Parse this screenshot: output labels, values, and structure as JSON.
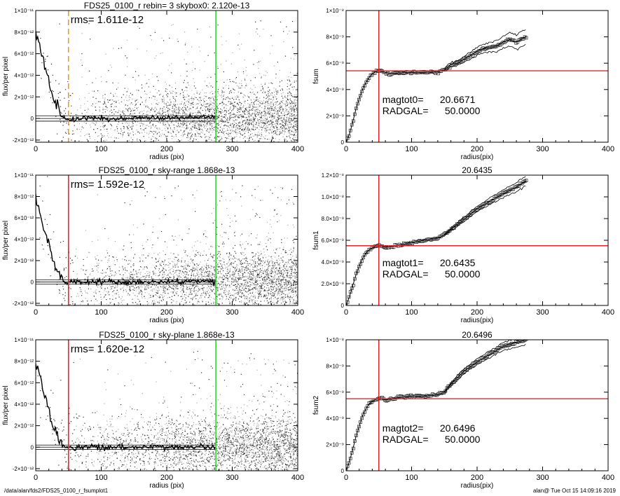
{
  "footer": {
    "path": "/data/alan/fds2/FDS25_0100_r_fsumplot1",
    "stamp": "alan@  Tue Oct 15 14:09:16 2019"
  },
  "colors": {
    "scatter": "#a8a8a8",
    "scatter_dark": "#303030",
    "profile": "#000000",
    "red": "#e8232a",
    "green": "#33d633",
    "orange": "#e89a2c"
  },
  "chart_data": [
    {
      "type": "scatter",
      "title": "FDS25_0100_r rebin= 3   skybox0:  2.120e-13",
      "annotation": "rms= 1.611e-12",
      "xlabel": "radius (pix)",
      "ylabel": "flux/per pixel",
      "xlim": [
        0,
        400
      ],
      "ylim": [
        -2.2e-12,
        1e-11
      ],
      "xticks": [
        0,
        100,
        200,
        300,
        400
      ],
      "xticklabels": [
        "0",
        "100",
        "200",
        "300",
        "400"
      ],
      "yticks": [
        -2e-12,
        0,
        2e-12,
        4e-12,
        6e-12,
        8e-12,
        1e-11
      ],
      "yticklabels": [
        "-2×10⁻¹²",
        "0",
        "2×10⁻¹²",
        "4×10⁻¹²",
        "6×10⁻¹²",
        "8×10⁻¹²",
        "1×10⁻¹¹"
      ],
      "vlines": [
        {
          "x": 50,
          "color": "orange",
          "style": "dashed"
        },
        {
          "x": 275,
          "color": "green",
          "style": "solid"
        }
      ],
      "hlines": [
        -2.5e-13,
        0,
        2.5e-13
      ],
      "profile": {
        "x": [
          0,
          5,
          10,
          15,
          20,
          25,
          30,
          35,
          40,
          45,
          50,
          60,
          80,
          100,
          150,
          200,
          250,
          275
        ],
        "y": [
          7.8e-12,
          7e-12,
          5.6e-12,
          4.6e-12,
          3.4e-12,
          2.3e-12,
          1.4e-12,
          8e-13,
          3e-13,
          1e-13,
          0.0,
          -5e-14,
          0.0,
          2e-14,
          0.0,
          5e-14,
          1e-13,
          1e-13
        ]
      }
    },
    {
      "type": "line",
      "title": "",
      "annotation_lines": [
        "magtot0=      20.6671",
        "RADGAL=      50.0000"
      ],
      "xlabel": "radius(pix)",
      "ylabel": "fsum",
      "xlim": [
        0,
        400
      ],
      "ylim": [
        0,
        1e-08
      ],
      "xticks": [
        0,
        100,
        200,
        300,
        400
      ],
      "xticklabels": [
        "0",
        "100",
        "200",
        "300",
        "400"
      ],
      "yticks": [
        0,
        2e-09,
        4e-09,
        6e-09,
        8e-09,
        1e-08
      ],
      "yticklabels": [
        "0",
        "2×10⁻⁹",
        "4×10⁻⁹",
        "6×10⁻⁹",
        "8×10⁻⁹",
        "1×10⁻⁸"
      ],
      "vline": 50,
      "hline": 5.42e-09,
      "band_start": 150,
      "band_width": [
        1e-10,
        6e-10
      ],
      "series": [
        {
          "x": [
            0,
            5,
            10,
            15,
            20,
            25,
            30,
            35,
            40,
            45,
            50,
            60,
            70,
            80,
            100,
            120,
            140,
            150,
            160,
            170,
            180,
            190,
            200,
            210,
            220,
            230,
            240,
            250,
            260,
            270,
            275
          ],
          "y": [
            0,
            6e-10,
            1.5e-09,
            2.5e-09,
            3.3e-09,
            4e-09,
            4.5e-09,
            4.9e-09,
            5.2e-09,
            5.35e-09,
            5.45e-09,
            5.3e-09,
            5.2e-09,
            5.25e-09,
            5.3e-09,
            5.3e-09,
            5.35e-09,
            5.5e-09,
            5.9e-09,
            6e-09,
            6.3e-09,
            6.6e-09,
            6.9e-09,
            7.1e-09,
            7.2e-09,
            7.3e-09,
            7.6e-09,
            7.8e-09,
            7.6e-09,
            7.9e-09,
            8e-09
          ]
        }
      ]
    },
    {
      "type": "scatter",
      "title": "FDS25_0100_r sky-range  1.868e-13",
      "annotation": "rms= 1.592e-12",
      "xlabel": "radius (pix)",
      "ylabel": "flux/per pixel",
      "xlim": [
        0,
        400
      ],
      "ylim": [
        -2.2e-12,
        1e-11
      ],
      "xticks": [
        0,
        100,
        200,
        300,
        400
      ],
      "xticklabels": [
        "0",
        "100",
        "200",
        "300",
        "400"
      ],
      "yticks": [
        -2e-12,
        0,
        2e-12,
        4e-12,
        6e-12,
        8e-12,
        1e-11
      ],
      "yticklabels": [
        "-2×10⁻¹²",
        "0",
        "2×10⁻¹²",
        "4×10⁻¹²",
        "6×10⁻¹²",
        "8×10⁻¹²",
        "1×10⁻¹¹"
      ],
      "vlines": [
        {
          "x": 50,
          "color": "red",
          "style": "solid"
        },
        {
          "x": 275,
          "color": "green",
          "style": "solid"
        }
      ],
      "hlines": [
        -2e-13,
        0,
        2e-13
      ],
      "profile": {
        "x": [
          0,
          5,
          10,
          15,
          20,
          25,
          30,
          35,
          40,
          45,
          50,
          60,
          80,
          100,
          150,
          200,
          250,
          275
        ],
        "y": [
          7.6e-12,
          6.8e-12,
          5.5e-12,
          4.4e-12,
          3.3e-12,
          2.2e-12,
          1.3e-12,
          7e-13,
          2.5e-13,
          5e-14,
          0.0,
          -5e-14,
          0.0,
          0.0,
          0.0,
          2e-14,
          5e-14,
          5e-14
        ]
      }
    },
    {
      "type": "line",
      "title": "20.6435",
      "annotation_lines": [
        "magtot1=      20.6435",
        "RADGAL=      50.0000"
      ],
      "xlabel": "radius(pix)",
      "ylabel": "fsum1",
      "xlim": [
        0,
        400
      ],
      "ylim": [
        0,
        1.2e-08
      ],
      "xticks": [
        0,
        100,
        200,
        300,
        400
      ],
      "xticklabels": [
        "0",
        "100",
        "200",
        "300",
        "400"
      ],
      "yticks": [
        0,
        2e-09,
        4e-09,
        6e-09,
        8e-09,
        1e-08,
        1.2e-08
      ],
      "yticklabels": [
        "0",
        "2.0×10⁻⁹",
        "4.0×10⁻⁹",
        "6.0×10⁻⁹",
        "8.0×10⁻⁹",
        "1.0×10⁻⁸",
        "1.2×10⁻⁸"
      ],
      "vline": 50,
      "hline": 5.5e-09,
      "band_start": 150,
      "band_width": [
        1e-10,
        4.5e-10
      ],
      "series": [
        {
          "x": [
            0,
            5,
            10,
            15,
            20,
            25,
            30,
            35,
            40,
            45,
            50,
            60,
            80,
            100,
            120,
            140,
            150,
            160,
            180,
            200,
            220,
            240,
            260,
            275
          ],
          "y": [
            0,
            8e-10,
            1.8e-09,
            2.8e-09,
            3.6e-09,
            4.3e-09,
            4.8e-09,
            5.1e-09,
            5.3e-09,
            5.45e-09,
            5.55e-09,
            5.35e-09,
            5.5e-09,
            5.8e-09,
            6e-09,
            6.2e-09,
            6.5e-09,
            7e-09,
            7.9e-09,
            8.9e-09,
            9.6e-09,
            1.03e-08,
            1.09e-08,
            1.15e-08
          ]
        }
      ]
    },
    {
      "type": "scatter",
      "title": "FDS25_0100_r sky-plane  1.868e-13",
      "annotation": "rms= 1.620e-12",
      "xlabel": "radius (pix)",
      "ylabel": "flux/per pixel",
      "xlim": [
        0,
        400
      ],
      "ylim": [
        -2.2e-12,
        1e-11
      ],
      "xticks": [
        0,
        100,
        200,
        300,
        400
      ],
      "xticklabels": [
        "0",
        "100",
        "200",
        "300",
        "400"
      ],
      "yticks": [
        -2e-12,
        0,
        2e-12,
        4e-12,
        6e-12,
        8e-12,
        1e-11
      ],
      "yticklabels": [
        "-2×10⁻¹²",
        "0",
        "2×10⁻¹²",
        "4×10⁻¹²",
        "6×10⁻¹²",
        "8×10⁻¹²",
        "1×10⁻¹¹"
      ],
      "vlines": [
        {
          "x": 50,
          "color": "red",
          "style": "solid"
        },
        {
          "x": 275,
          "color": "green",
          "style": "solid"
        }
      ],
      "hlines": [
        -2e-13,
        0,
        2e-13
      ],
      "profile": {
        "x": [
          0,
          5,
          10,
          15,
          20,
          25,
          30,
          35,
          40,
          45,
          50,
          60,
          80,
          100,
          150,
          200,
          250,
          275
        ],
        "y": [
          7.8e-12,
          7e-12,
          5.6e-12,
          4.5e-12,
          3.4e-12,
          2.3e-12,
          1.4e-12,
          7e-13,
          3e-13,
          1e-13,
          0.0,
          -5e-14,
          0.0,
          0.0,
          0.0,
          2e-14,
          5e-14,
          5e-14
        ]
      }
    },
    {
      "type": "line",
      "title": "20.6496",
      "annotation_lines": [
        "magtot2=      20.6496",
        "RADGAL=      50.0000"
      ],
      "xlabel": "radius(pix)",
      "ylabel": "fsum2",
      "xlim": [
        0,
        400
      ],
      "ylim": [
        0,
        1e-08
      ],
      "xticks": [
        0,
        100,
        200,
        300,
        400
      ],
      "xticklabels": [
        "0",
        "100",
        "200",
        "300",
        "400"
      ],
      "yticks": [
        0,
        2e-09,
        4e-09,
        6e-09,
        8e-09,
        1e-08
      ],
      "yticklabels": [
        "0",
        "2×10⁻⁹",
        "4×10⁻⁹",
        "6×10⁻⁹",
        "8×10⁻⁹",
        "1×10⁻⁸"
      ],
      "vline": 50,
      "hline": 5.5e-09,
      "band_start": 150,
      "band_width": [
        1e-10,
        4e-10
      ],
      "series": [
        {
          "x": [
            0,
            5,
            10,
            15,
            20,
            25,
            30,
            35,
            40,
            45,
            50,
            60,
            80,
            100,
            120,
            140,
            150,
            160,
            180,
            200,
            220,
            240,
            260,
            275
          ],
          "y": [
            0,
            7e-10,
            1.6e-09,
            2.6e-09,
            3.4e-09,
            4.2e-09,
            4.7e-09,
            5.1e-09,
            5.3e-09,
            5.45e-09,
            5.55e-09,
            5.4e-09,
            5.6e-09,
            5.7e-09,
            5.7e-09,
            5.8e-09,
            6e-09,
            6.6e-09,
            7.6e-09,
            8.3e-09,
            8.9e-09,
            9.5e-09,
            9.8e-09,
            1e-08
          ]
        }
      ]
    }
  ]
}
